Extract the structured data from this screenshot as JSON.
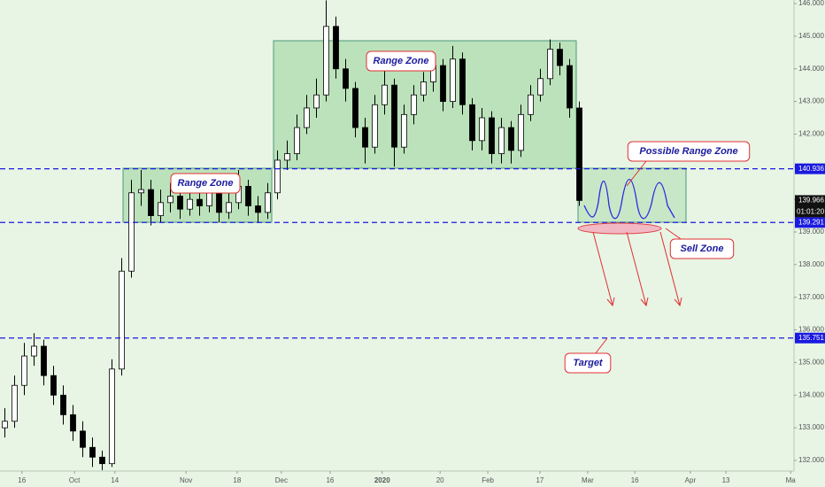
{
  "chart_data": {
    "type": "candlestick",
    "x": [
      1,
      3,
      5,
      7,
      9,
      11,
      13,
      15,
      17,
      19,
      21,
      23,
      25,
      27,
      29,
      31,
      33,
      35,
      37,
      39,
      41,
      43,
      45,
      47,
      49,
      51,
      53,
      55,
      57,
      59,
      61,
      63,
      65,
      67,
      69,
      71,
      73,
      75,
      77,
      79,
      81,
      83,
      85,
      87,
      89,
      91,
      93,
      95,
      97,
      99,
      101,
      103,
      105,
      107,
      109,
      111,
      113,
      115,
      117,
      119
    ],
    "open": [
      133.0,
      133.2,
      134.3,
      135.2,
      135.5,
      134.6,
      134.0,
      133.4,
      132.9,
      132.4,
      132.1,
      131.9,
      134.8,
      137.8,
      140.2,
      140.3,
      139.5,
      139.9,
      140.1,
      139.7,
      140.0,
      139.8,
      140.2,
      139.6,
      139.9,
      140.4,
      139.8,
      139.6,
      140.2,
      141.2,
      141.4,
      142.2,
      142.8,
      143.2,
      145.3,
      144.0,
      143.4,
      142.2,
      141.6,
      142.9,
      143.5,
      141.6,
      142.6,
      143.2,
      143.6,
      144.1,
      143.0,
      144.3,
      142.9,
      141.8,
      142.5,
      141.4,
      142.2,
      141.5,
      142.6,
      143.2,
      143.7,
      144.6,
      144.1,
      142.8
    ],
    "high": [
      133.6,
      134.6,
      135.6,
      135.9,
      135.7,
      134.9,
      134.3,
      133.7,
      133.2,
      132.7,
      132.3,
      135.1,
      138.2,
      140.6,
      140.9,
      140.6,
      140.3,
      140.5,
      140.3,
      140.4,
      140.3,
      140.5,
      140.4,
      140.3,
      140.9,
      140.6,
      140.1,
      140.5,
      141.5,
      141.8,
      142.6,
      143.2,
      143.7,
      146.1,
      145.6,
      144.3,
      143.6,
      142.5,
      143.2,
      144.0,
      143.7,
      142.9,
      143.5,
      143.9,
      144.5,
      144.3,
      144.7,
      144.5,
      143.1,
      142.8,
      142.7,
      142.5,
      142.4,
      142.9,
      143.5,
      144.0,
      144.9,
      144.8,
      144.3,
      143.0
    ],
    "low": [
      132.7,
      133.0,
      134.0,
      134.9,
      134.3,
      133.7,
      133.1,
      132.6,
      132.1,
      131.8,
      131.7,
      131.8,
      134.6,
      137.6,
      139.8,
      139.2,
      139.3,
      139.6,
      139.4,
      139.5,
      139.5,
      139.6,
      139.3,
      139.4,
      139.7,
      139.5,
      139.3,
      139.4,
      140.0,
      140.9,
      141.2,
      142.0,
      142.5,
      143.0,
      143.7,
      143.0,
      141.9,
      141.1,
      141.4,
      142.6,
      141.0,
      141.4,
      142.3,
      143.0,
      143.3,
      142.7,
      142.8,
      142.6,
      141.5,
      141.5,
      141.1,
      141.1,
      141.1,
      141.3,
      142.4,
      143.0,
      143.5,
      143.8,
      142.5,
      139.8
    ],
    "close": [
      133.2,
      134.3,
      135.2,
      135.5,
      134.6,
      134.0,
      133.4,
      132.9,
      132.4,
      132.1,
      131.9,
      134.8,
      137.8,
      140.2,
      140.3,
      139.5,
      139.9,
      140.1,
      139.7,
      140.0,
      139.8,
      140.2,
      139.6,
      139.9,
      140.4,
      139.8,
      139.6,
      140.2,
      141.2,
      141.4,
      142.2,
      142.8,
      143.2,
      145.3,
      144.0,
      143.4,
      142.2,
      141.6,
      142.9,
      143.5,
      141.6,
      142.6,
      143.2,
      143.6,
      144.1,
      143.0,
      144.3,
      142.9,
      141.8,
      142.5,
      141.4,
      142.2,
      141.5,
      142.6,
      143.2,
      143.7,
      144.6,
      144.1,
      142.8,
      139.966
    ],
    "xlim": [
      0,
      163
    ],
    "xticks": [
      {
        "value": 4.5,
        "label": "16"
      },
      {
        "value": 15.3,
        "label": "Oct"
      },
      {
        "value": 23.6,
        "label": "14"
      },
      {
        "value": 38.2,
        "label": "Nov"
      },
      {
        "value": 48.7,
        "label": "18"
      },
      {
        "value": 57.8,
        "label": "Dec"
      },
      {
        "value": 67.8,
        "label": "16"
      },
      {
        "value": 78.5,
        "label": "2020"
      },
      {
        "value": 90.4,
        "label": "20"
      },
      {
        "value": 100.2,
        "label": "Feb"
      },
      {
        "value": 110.9,
        "label": "17"
      },
      {
        "value": 120.7,
        "label": "Mar"
      },
      {
        "value": 130.4,
        "label": "16"
      },
      {
        "value": 141.8,
        "label": "Apr"
      },
      {
        "value": 149.1,
        "label": "13"
      },
      {
        "value": 162.4,
        "label": "Ma"
      }
    ],
    "ylim": [
      131.674,
      146.109
    ],
    "yticks": [
      {
        "value": 132,
        "label": "132.000"
      },
      {
        "value": 133,
        "label": "133.000"
      },
      {
        "value": 134,
        "label": "134.000"
      },
      {
        "value": 135,
        "label": "135.000"
      },
      {
        "value": 136,
        "label": "136.000"
      },
      {
        "value": 137,
        "label": "137.000"
      },
      {
        "value": 138,
        "label": "138.000"
      },
      {
        "value": 139,
        "label": "139.000"
      },
      {
        "value": 140,
        "label": "140.000"
      },
      {
        "value": 141,
        "label": "141.000"
      },
      {
        "value": 142,
        "label": "142.000"
      },
      {
        "value": 143,
        "label": "143.000"
      },
      {
        "value": 144,
        "label": "144.000"
      },
      {
        "value": 145,
        "label": "145.000"
      },
      {
        "value": 146,
        "label": "146.000"
      }
    ],
    "levels": [
      140.936,
      139.291,
      135.751
    ],
    "last_price": 139.966,
    "countdown": "01:01:20",
    "annotations": [
      "Range Zone",
      "Range Zone",
      "Possible Range Zone",
      "Sell Zone",
      "Target"
    ]
  }
}
